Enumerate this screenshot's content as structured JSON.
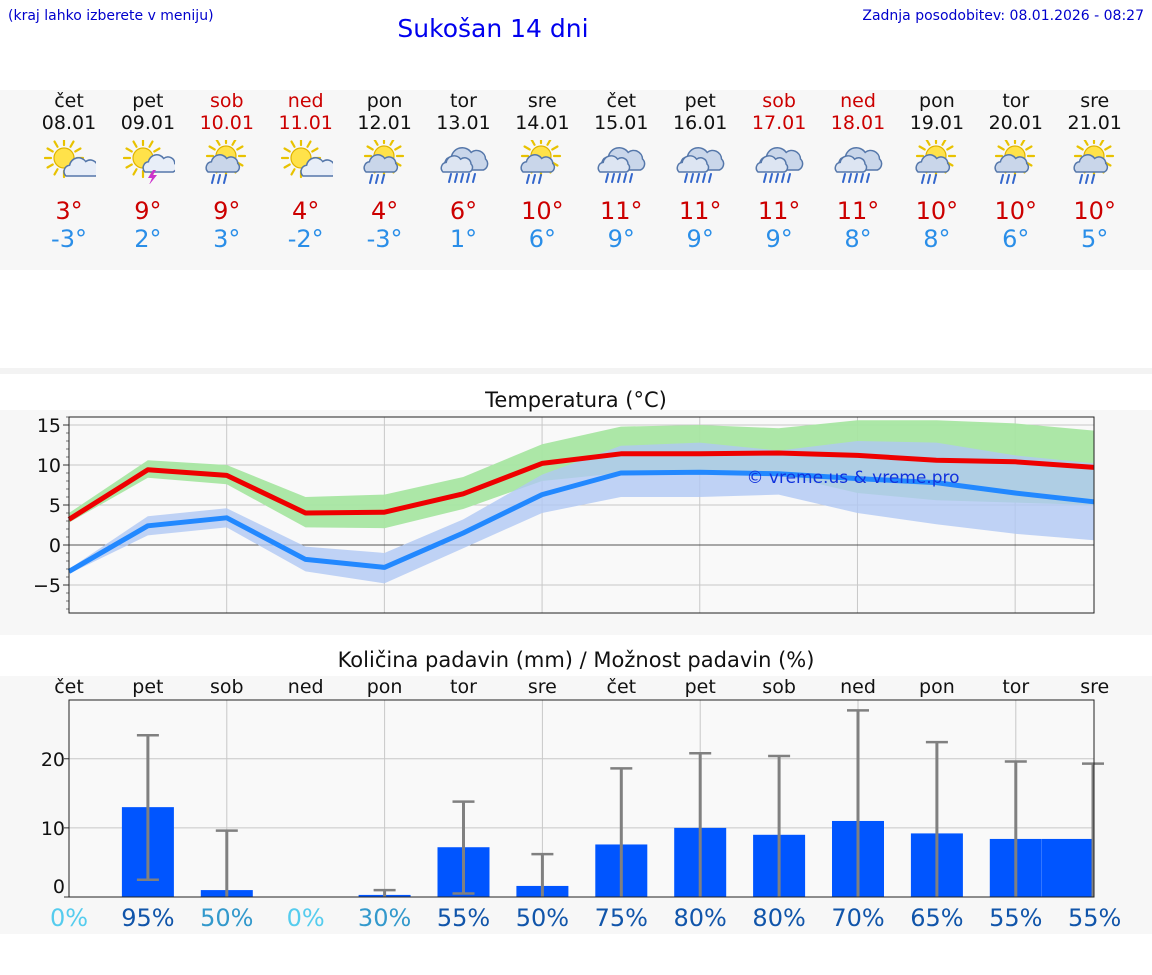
{
  "header": {
    "hint": "(kraj lahko izberete v meniju)",
    "title": "Sukošan 14 dni",
    "updated": "Zadnja posodobitev: 08.01.2026 - 08:27"
  },
  "days": [
    {
      "name": "čet",
      "date": "08.01",
      "weekend": false,
      "icon": "sun-cloud-icon",
      "tmax": "3°",
      "tmin": "-3°"
    },
    {
      "name": "pet",
      "date": "09.01",
      "weekend": false,
      "icon": "sun-cloud-thunder-icon",
      "tmax": "9°",
      "tmin": "2°"
    },
    {
      "name": "sob",
      "date": "10.01",
      "weekend": true,
      "icon": "sun-cloud-rain-icon",
      "tmax": "9°",
      "tmin": "3°"
    },
    {
      "name": "ned",
      "date": "11.01",
      "weekend": true,
      "icon": "sun-cloud-icon",
      "tmax": "4°",
      "tmin": "-2°"
    },
    {
      "name": "pon",
      "date": "12.01",
      "weekend": false,
      "icon": "sun-cloud-rain-icon",
      "tmax": "4°",
      "tmin": "-3°"
    },
    {
      "name": "tor",
      "date": "13.01",
      "weekend": false,
      "icon": "cloud-rain-icon",
      "tmax": "6°",
      "tmin": "1°"
    },
    {
      "name": "sre",
      "date": "14.01",
      "weekend": false,
      "icon": "sun-cloud-rain-icon",
      "tmax": "10°",
      "tmin": "6°"
    },
    {
      "name": "čet",
      "date": "15.01",
      "weekend": false,
      "icon": "cloud-rain-icon",
      "tmax": "11°",
      "tmin": "9°"
    },
    {
      "name": "pet",
      "date": "16.01",
      "weekend": false,
      "icon": "cloud-rain-icon",
      "tmax": "11°",
      "tmin": "9°"
    },
    {
      "name": "sob",
      "date": "17.01",
      "weekend": true,
      "icon": "cloud-rain-icon",
      "tmax": "11°",
      "tmin": "9°"
    },
    {
      "name": "ned",
      "date": "18.01",
      "weekend": true,
      "icon": "cloud-rain-icon",
      "tmax": "11°",
      "tmin": "8°"
    },
    {
      "name": "pon",
      "date": "19.01",
      "weekend": false,
      "icon": "sun-cloud-rain-icon",
      "tmax": "10°",
      "tmin": "8°"
    },
    {
      "name": "tor",
      "date": "20.01",
      "weekend": false,
      "icon": "sun-cloud-rain-icon",
      "tmax": "10°",
      "tmin": "6°"
    },
    {
      "name": "sre",
      "date": "21.01",
      "weekend": false,
      "icon": "sun-cloud-rain-icon",
      "tmax": "10°",
      "tmin": "5°"
    }
  ],
  "colors": {
    "max_line": "#ee0000",
    "min_line": "#2288ff",
    "max_band": "#a8e6a2",
    "min_band": "#b0c8f4",
    "bar": "#0055ff",
    "whisker": "#808080",
    "prob_dark": "#1155aa",
    "prob_mid": "#3399cc",
    "prob_light": "#55ccee"
  },
  "chart_data": [
    {
      "type": "line",
      "title": "Temperatura (°C)",
      "watermark": "© vreme.us & vreme.pro",
      "ylim": [
        -8.5,
        16
      ],
      "yticks": [
        -5,
        0,
        5,
        10,
        15
      ],
      "ytick_labels": [
        "−5",
        "0",
        "5",
        "10",
        "15"
      ],
      "x": [
        0,
        1,
        2,
        3,
        4,
        5,
        6,
        7,
        8,
        9,
        10,
        11,
        12,
        13
      ],
      "series": [
        {
          "name": "max",
          "values": [
            3.2,
            9.4,
            8.7,
            4.0,
            4.1,
            6.4,
            10.2,
            11.4,
            11.4,
            11.5,
            11.2,
            10.6,
            10.4,
            9.7
          ],
          "band_low": [
            2.8,
            8.4,
            7.6,
            2.2,
            2.1,
            4.5,
            8.0,
            9.0,
            9.0,
            8.8,
            6.5,
            5.6,
            5.3,
            5.0
          ],
          "band_high": [
            4.0,
            10.6,
            10.0,
            6.0,
            6.3,
            8.5,
            12.6,
            14.8,
            15.0,
            14.6,
            15.6,
            15.6,
            15.2,
            14.3
          ]
        },
        {
          "name": "min",
          "values": [
            -3.3,
            2.4,
            3.4,
            -1.8,
            -2.8,
            1.5,
            6.3,
            9.0,
            9.1,
            8.9,
            8.3,
            7.8,
            6.5,
            5.4
          ],
          "band_low": [
            -3.6,
            1.2,
            2.2,
            -3.3,
            -4.8,
            -0.4,
            4.0,
            6.0,
            6.0,
            6.3,
            4.0,
            2.6,
            1.4,
            0.6
          ],
          "band_high": [
            -3.0,
            3.6,
            4.6,
            -0.2,
            -1.0,
            3.2,
            8.8,
            12.4,
            12.8,
            11.8,
            13.0,
            12.8,
            11.2,
            10.2
          ]
        }
      ]
    },
    {
      "type": "bar",
      "title": "Količina padavin (mm) / Možnost padavin (%)",
      "categories": [
        "čet",
        "pet",
        "sob",
        "ned",
        "pon",
        "tor",
        "sre",
        "čet",
        "pet",
        "sob",
        "ned",
        "pon",
        "tor",
        "sre"
      ],
      "values": [
        0,
        13,
        1,
        0,
        0.3,
        7.2,
        1.6,
        7.6,
        10,
        9,
        11,
        9.2,
        8.4,
        8.4
      ],
      "err_low": [
        0,
        2.5,
        0,
        0,
        0,
        0.5,
        0,
        0,
        0,
        0,
        0,
        0,
        0,
        0
      ],
      "err_high": [
        0,
        23.4,
        9.6,
        0,
        1.0,
        13.8,
        6.2,
        18.6,
        20.8,
        20.4,
        27,
        22.4,
        19.6,
        19.3
      ],
      "ylim": [
        0,
        28.5
      ],
      "yticks": [
        0,
        10,
        20
      ],
      "probabilities": [
        "0%",
        "95%",
        "50%",
        "0%",
        "30%",
        "55%",
        "50%",
        "75%",
        "80%",
        "80%",
        "70%",
        "65%",
        "55%",
        "55%"
      ],
      "probability_levels": [
        "light",
        "dark",
        "mid",
        "light",
        "mid",
        "dark",
        "dark",
        "dark",
        "dark",
        "dark",
        "dark",
        "dark",
        "dark",
        "dark"
      ]
    }
  ]
}
